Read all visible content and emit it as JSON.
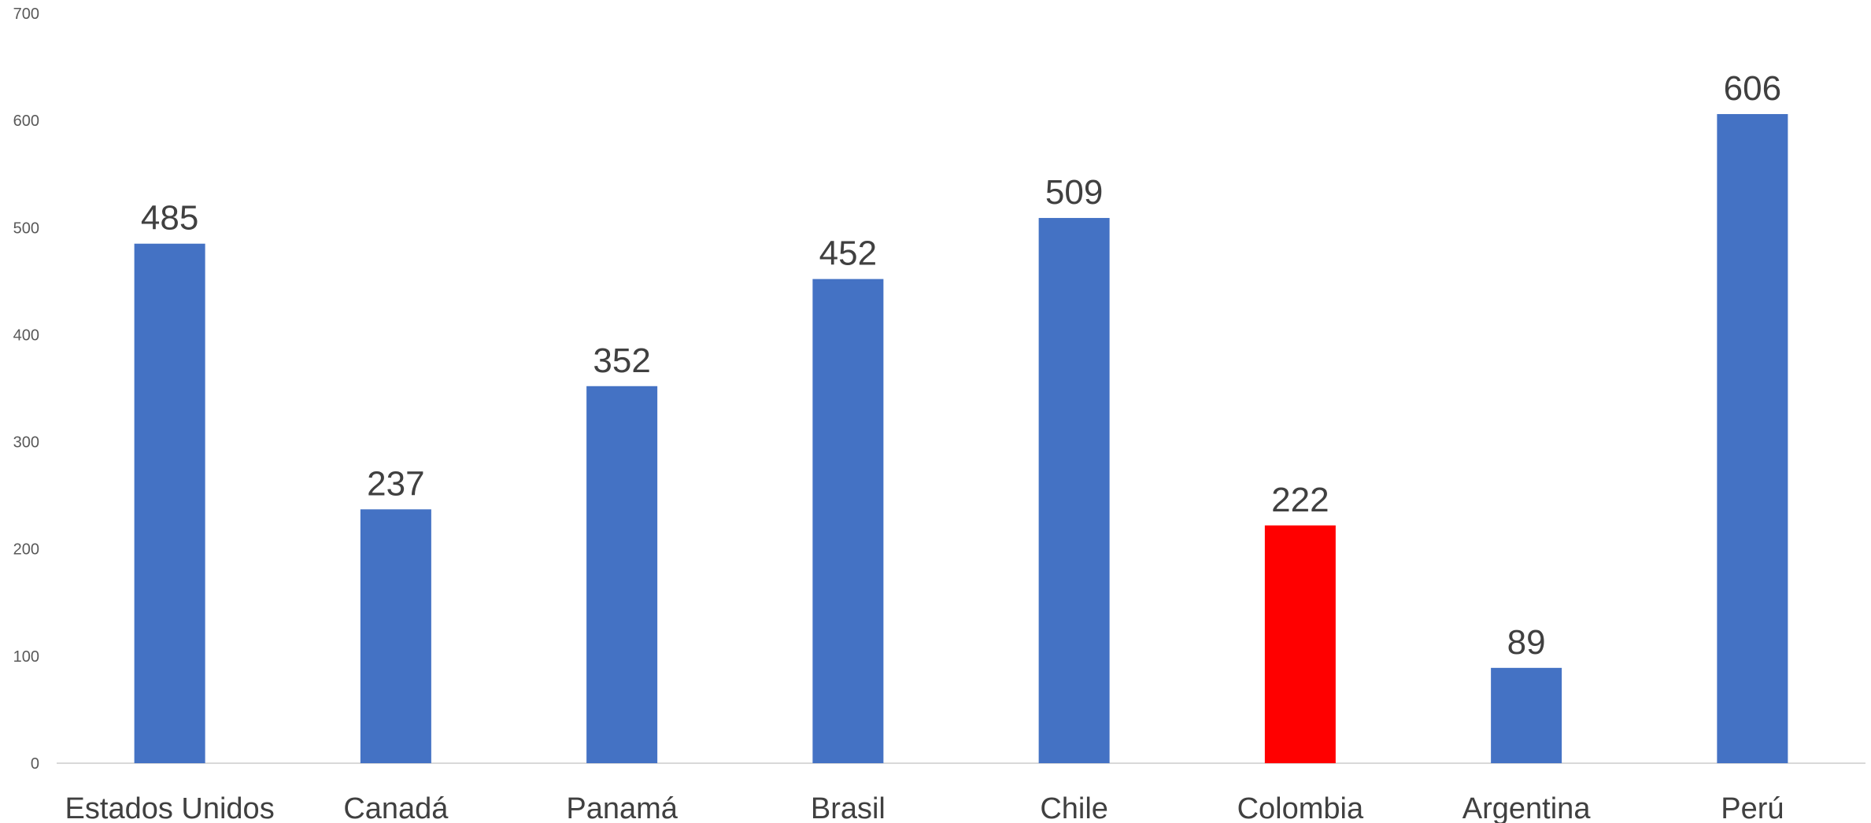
{
  "chart_data": {
    "type": "bar",
    "title": "",
    "xlabel": "",
    "ylabel": "",
    "categories": [
      "Estados Unidos",
      "Canadá",
      "Panamá",
      "Brasil",
      "Chile",
      "Colombia",
      "Argentina",
      "Perú"
    ],
    "values": [
      485,
      237,
      352,
      452,
      509,
      222,
      89,
      606
    ],
    "ylim": [
      0,
      700
    ],
    "yticks": [
      0,
      100,
      200,
      300,
      400,
      500,
      600,
      700
    ],
    "grid": false,
    "legend": "none",
    "data_labels": true,
    "colors": {
      "default": "#4472C4",
      "highlight": "#FF0000"
    },
    "highlight_category": "Colombia"
  }
}
